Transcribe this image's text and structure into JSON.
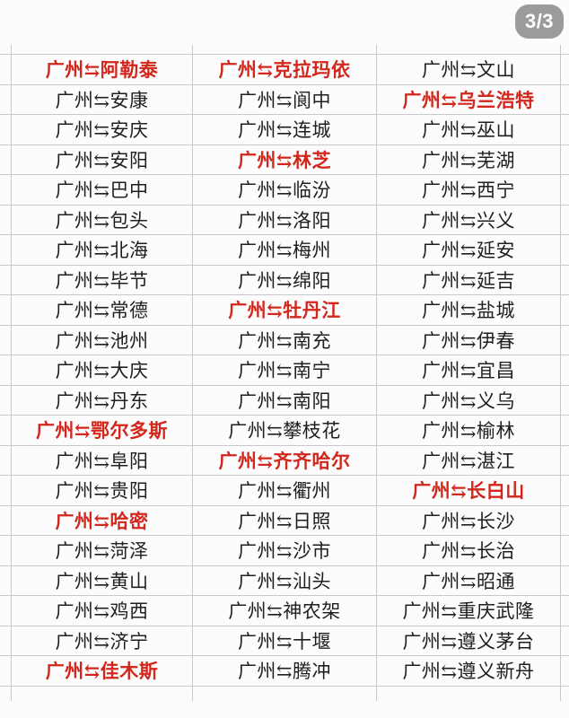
{
  "badge": {
    "label": "3/3"
  },
  "colors": {
    "red": "#d2271c",
    "black": "#1f1f1f",
    "gridline": "#c8c8ce",
    "badge_bg": "#9b9b9b",
    "badge_text": "#ffffff",
    "page_bg": "#fcfcfc"
  },
  "table": {
    "origin": "广州",
    "arrow_icon": "⇆",
    "columns": [
      {
        "routes": [
          {
            "dest": "阿勒泰",
            "red": true
          },
          {
            "dest": "安康",
            "red": false
          },
          {
            "dest": "安庆",
            "red": false
          },
          {
            "dest": "安阳",
            "red": false
          },
          {
            "dest": "巴中",
            "red": false
          },
          {
            "dest": "包头",
            "red": false
          },
          {
            "dest": "北海",
            "red": false
          },
          {
            "dest": "毕节",
            "red": false
          },
          {
            "dest": "常德",
            "red": false
          },
          {
            "dest": "池州",
            "red": false
          },
          {
            "dest": "大庆",
            "red": false
          },
          {
            "dest": "丹东",
            "red": false
          },
          {
            "dest": "鄂尔多斯",
            "red": true
          },
          {
            "dest": "阜阳",
            "red": false
          },
          {
            "dest": "贵阳",
            "red": false
          },
          {
            "dest": "哈密",
            "red": true
          },
          {
            "dest": "菏泽",
            "red": false
          },
          {
            "dest": "黄山",
            "red": false
          },
          {
            "dest": "鸡西",
            "red": false
          },
          {
            "dest": "济宁",
            "red": false
          },
          {
            "dest": "佳木斯",
            "red": true
          }
        ]
      },
      {
        "routes": [
          {
            "dest": "克拉玛依",
            "red": true
          },
          {
            "dest": "阆中",
            "red": false
          },
          {
            "dest": "连城",
            "red": false
          },
          {
            "dest": "林芝",
            "red": true
          },
          {
            "dest": "临汾",
            "red": false
          },
          {
            "dest": "洛阳",
            "red": false
          },
          {
            "dest": "梅州",
            "red": false
          },
          {
            "dest": "绵阳",
            "red": false
          },
          {
            "dest": "牡丹江",
            "red": true
          },
          {
            "dest": "南充",
            "red": false
          },
          {
            "dest": "南宁",
            "red": false
          },
          {
            "dest": "南阳",
            "red": false
          },
          {
            "dest": "攀枝花",
            "red": false
          },
          {
            "dest": "齐齐哈尔",
            "red": true
          },
          {
            "dest": "衢州",
            "red": false
          },
          {
            "dest": "日照",
            "red": false
          },
          {
            "dest": "沙市",
            "red": false
          },
          {
            "dest": "汕头",
            "red": false
          },
          {
            "dest": "神农架",
            "red": false
          },
          {
            "dest": "十堰",
            "red": false
          },
          {
            "dest": "腾冲",
            "red": false
          }
        ]
      },
      {
        "routes": [
          {
            "dest": "文山",
            "red": false
          },
          {
            "dest": "乌兰浩特",
            "red": true
          },
          {
            "dest": "巫山",
            "red": false
          },
          {
            "dest": "芜湖",
            "red": false
          },
          {
            "dest": "西宁",
            "red": false
          },
          {
            "dest": "兴义",
            "red": false
          },
          {
            "dest": "延安",
            "red": false
          },
          {
            "dest": "延吉",
            "red": false
          },
          {
            "dest": "盐城",
            "red": false
          },
          {
            "dest": "伊春",
            "red": false
          },
          {
            "dest": "宜昌",
            "red": false
          },
          {
            "dest": "义乌",
            "red": false
          },
          {
            "dest": "榆林",
            "red": false
          },
          {
            "dest": "湛江",
            "red": false
          },
          {
            "dest": "长白山",
            "red": true
          },
          {
            "dest": "长沙",
            "red": false
          },
          {
            "dest": "长治",
            "red": false
          },
          {
            "dest": "昭通",
            "red": false
          },
          {
            "dest": "重庆武隆",
            "red": false
          },
          {
            "dest": "遵义茅台",
            "red": false
          },
          {
            "dest": "遵义新舟",
            "red": false
          }
        ]
      }
    ]
  }
}
